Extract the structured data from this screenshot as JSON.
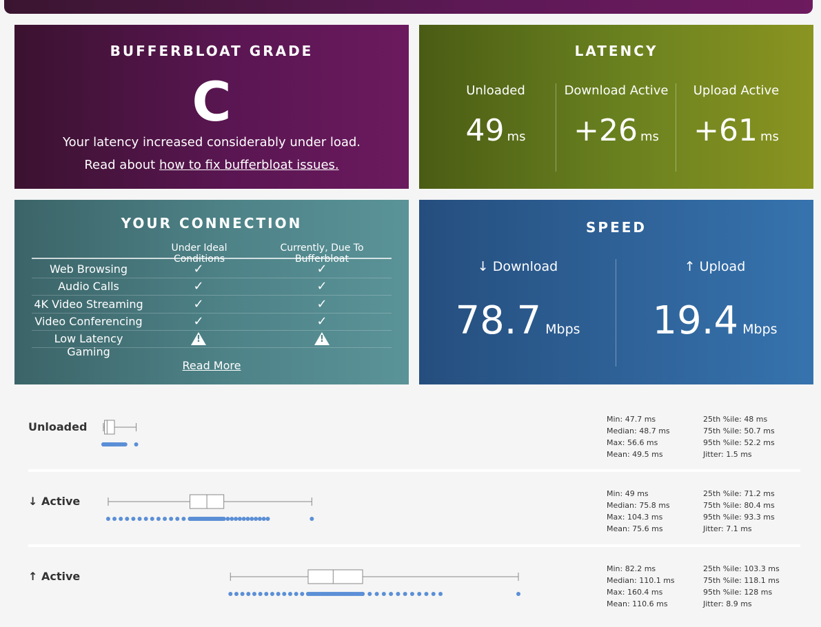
{
  "grade": {
    "title": "BUFFERBLOAT GRADE",
    "letter": "C",
    "line1": "Your latency increased considerably under load.",
    "line2_prefix": "Read about ",
    "line2_link": "how to fix bufferbloat issues."
  },
  "latency": {
    "title": "LATENCY",
    "columns": [
      {
        "label": "Unloaded",
        "value": "49",
        "unit": "ms"
      },
      {
        "label": "Download Active",
        "value": "+26",
        "unit": "ms"
      },
      {
        "label": "Upload Active",
        "value": "+61",
        "unit": "ms"
      }
    ]
  },
  "connection": {
    "title": "YOUR CONNECTION",
    "col1_header": "Under Ideal Conditions",
    "col2_header": "Currently, Due To Bufferbloat",
    "rows": [
      {
        "name": "Web Browsing",
        "ideal": "check",
        "current": "check"
      },
      {
        "name": "Audio Calls",
        "ideal": "check",
        "current": "check"
      },
      {
        "name": "4K Video Streaming",
        "ideal": "check",
        "current": "check"
      },
      {
        "name": "Video Conferencing",
        "ideal": "check",
        "current": "check"
      },
      {
        "name": "Low Latency Gaming",
        "ideal": "warning",
        "current": "warning"
      }
    ],
    "read_more": "Read More"
  },
  "speed": {
    "title": "SPEED",
    "download": {
      "label": "↓ Download",
      "value": "78.7",
      "unit": "Mbps"
    },
    "upload": {
      "label": "↑ Upload",
      "value": "19.4",
      "unit": "Mbps"
    }
  },
  "stats": [
    {
      "label": "Unloaded",
      "min": "Min: 47.7 ms",
      "median": "Median: 48.7 ms",
      "max": "Max: 56.6 ms",
      "mean": "Mean: 49.5 ms",
      "p25": "25th %ile: 48 ms",
      "p75": "75th %ile: 50.7 ms",
      "p95": "95th %ile: 52.2 ms",
      "jitter": "Jitter: 1.5 ms",
      "box": {
        "min": 47.7,
        "q1": 48,
        "median": 48.7,
        "q3": 50.7,
        "max": 56.6
      }
    },
    {
      "label": "↓ Active",
      "min": "Min: 49 ms",
      "median": "Median: 75.8 ms",
      "max": "Max: 104.3 ms",
      "mean": "Mean: 75.6 ms",
      "p25": "25th %ile: 71.2 ms",
      "p75": "75th %ile: 80.4 ms",
      "p95": "95th %ile: 93.3 ms",
      "jitter": "Jitter: 7.1 ms",
      "box": {
        "min": 49,
        "q1": 71.2,
        "median": 75.8,
        "q3": 80.4,
        "max": 104.3
      }
    },
    {
      "label": "↑ Active",
      "min": "Min: 82.2 ms",
      "median": "Median: 110.1 ms",
      "max": "Max: 160.4 ms",
      "mean": "Mean: 110.6 ms",
      "p25": "25th %ile: 103.3 ms",
      "p75": "75th %ile: 118.1 ms",
      "p95": "95th %ile: 128 ms",
      "jitter": "Jitter: 8.9 ms",
      "box": {
        "min": 82.2,
        "q1": 103.3,
        "median": 110.1,
        "q3": 118.1,
        "max": 160.4
      }
    }
  ],
  "colors": {
    "dots": "#5b8fd6",
    "box_stroke": "#888888"
  }
}
